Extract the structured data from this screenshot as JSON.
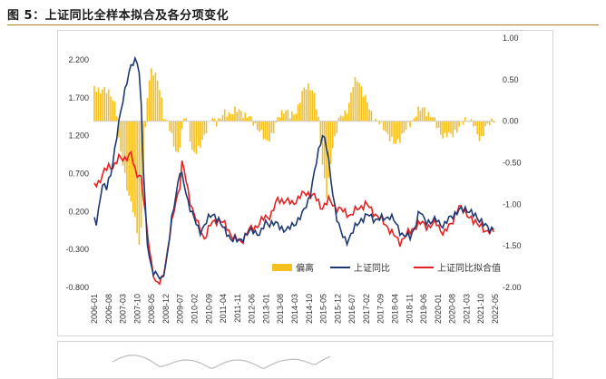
{
  "figure": {
    "title": "图 5：上证同比全样本拟合及各分项变化"
  },
  "chart_data": {
    "type": "line",
    "title": "",
    "left_axis": {
      "ticks": [
        "2.200",
        "1.700",
        "1.200",
        "0.700",
        "0.200",
        "-0.300",
        "-0.800"
      ],
      "ylim": [
        -0.8,
        2.2
      ]
    },
    "right_axis": {
      "ticks": [
        "1.00",
        "0.50",
        "0.00",
        "-0.50",
        "-1.00",
        "-1.50",
        "-2.00"
      ],
      "ylim": [
        -2.0,
        1.0
      ]
    },
    "x_ticks": [
      "2006-01",
      "2006-08",
      "2007-03",
      "2007-10",
      "2008-05",
      "2008-12",
      "2009-07",
      "2010-02",
      "2010-09",
      "2011-04",
      "2011-11",
      "2012-06",
      "2013-01",
      "2013-08",
      "2014-03",
      "2014-10",
      "2015-05",
      "2015-12",
      "2016-07",
      "2017-02",
      "2017-09",
      "2018-04",
      "2018-11",
      "2019-06",
      "2020-01",
      "2020-08",
      "2021-03",
      "2021-10",
      "2022-05"
    ],
    "legend": [
      "偏离",
      "上证同比",
      "上证同比拟合值"
    ],
    "colors": {
      "deviation": "#f5c01f",
      "actual": "#1f3a73",
      "fitted": "#e52222"
    },
    "deviation_control_points": [
      [
        2006.0,
        0.4
      ],
      [
        2006.3,
        0.38
      ],
      [
        2006.7,
        0.33
      ],
      [
        2006.9,
        0.15
      ],
      [
        2007.0,
        -0.25
      ],
      [
        2007.2,
        -0.55
      ],
      [
        2007.4,
        -0.9
      ],
      [
        2007.6,
        -1.1
      ],
      [
        2007.75,
        -1.3
      ],
      [
        2007.85,
        -1.5
      ],
      [
        2007.95,
        -1.2
      ],
      [
        2008.05,
        -0.3
      ],
      [
        2008.2,
        0.45
      ],
      [
        2008.35,
        0.65
      ],
      [
        2008.5,
        0.55
      ],
      [
        2008.7,
        0.35
      ],
      [
        2008.85,
        0.05
      ],
      [
        2009.0,
        0.0
      ],
      [
        2009.2,
        -0.25
      ],
      [
        2009.4,
        -0.4
      ],
      [
        2009.55,
        -0.2
      ],
      [
        2009.7,
        0.08
      ],
      [
        2009.85,
        -0.05
      ],
      [
        2010.0,
        -0.35
      ],
      [
        2010.2,
        -0.4
      ],
      [
        2010.5,
        -0.15
      ],
      [
        2010.8,
        0.03
      ],
      [
        2011.0,
        0.0
      ],
      [
        2011.3,
        0.08
      ],
      [
        2011.7,
        0.12
      ],
      [
        2012.0,
        0.12
      ],
      [
        2012.3,
        0.05
      ],
      [
        2012.7,
        -0.08
      ],
      [
        2013.0,
        -0.25
      ],
      [
        2013.3,
        -0.15
      ],
      [
        2013.6,
        0.1
      ],
      [
        2013.8,
        0.15
      ],
      [
        2014.0,
        0.05
      ],
      [
        2014.3,
        0.15
      ],
      [
        2014.6,
        0.4
      ],
      [
        2014.8,
        0.45
      ],
      [
        2015.0,
        0.3
      ],
      [
        2015.2,
        -0.05
      ],
      [
        2015.35,
        -0.55
      ],
      [
        2015.5,
        -0.9
      ],
      [
        2015.6,
        -0.7
      ],
      [
        2015.75,
        -0.3
      ],
      [
        2016.0,
        0.02
      ],
      [
        2016.3,
        0.1
      ],
      [
        2016.6,
        0.45
      ],
      [
        2016.8,
        0.5
      ],
      [
        2017.0,
        0.35
      ],
      [
        2017.3,
        0.1
      ],
      [
        2017.6,
        0.0
      ],
      [
        2018.0,
        -0.15
      ],
      [
        2018.3,
        -0.3
      ],
      [
        2018.6,
        -0.15
      ],
      [
        2018.9,
        -0.05
      ],
      [
        2019.2,
        0.12
      ],
      [
        2019.5,
        0.15
      ],
      [
        2019.8,
        0.05
      ],
      [
        2020.0,
        -0.05
      ],
      [
        2020.3,
        -0.2
      ],
      [
        2020.6,
        -0.15
      ],
      [
        2020.9,
        -0.1
      ],
      [
        2021.2,
        0.05
      ],
      [
        2021.5,
        -0.05
      ],
      [
        2021.8,
        -0.22
      ],
      [
        2022.0,
        -0.1
      ],
      [
        2022.2,
        0.0
      ],
      [
        2022.4,
        0.05
      ]
    ],
    "actual_control_points": [
      [
        2006.0,
        0.1
      ],
      [
        2006.1,
        0.05
      ],
      [
        2006.3,
        0.55
      ],
      [
        2006.5,
        0.5
      ],
      [
        2006.7,
        0.75
      ],
      [
        2006.9,
        1.15
      ],
      [
        2007.1,
        1.55
      ],
      [
        2007.3,
        1.9
      ],
      [
        2007.5,
        2.1
      ],
      [
        2007.7,
        2.2
      ],
      [
        2007.8,
        2.2
      ],
      [
        2007.9,
        1.75
      ],
      [
        2008.0,
        0.8
      ],
      [
        2008.15,
        -0.2
      ],
      [
        2008.35,
        -0.55
      ],
      [
        2008.55,
        -0.65
      ],
      [
        2008.75,
        -0.7
      ],
      [
        2008.95,
        -0.45
      ],
      [
        2009.15,
        0.05
      ],
      [
        2009.35,
        0.45
      ],
      [
        2009.5,
        0.75
      ],
      [
        2009.6,
        0.65
      ],
      [
        2009.8,
        0.35
      ],
      [
        2010.0,
        0.2
      ],
      [
        2010.3,
        -0.1
      ],
      [
        2010.6,
        0.1
      ],
      [
        2010.9,
        0.15
      ],
      [
        2011.1,
        0.1
      ],
      [
        2011.3,
        -0.05
      ],
      [
        2011.6,
        -0.15
      ],
      [
        2011.9,
        -0.2
      ],
      [
        2012.2,
        -0.1
      ],
      [
        2012.5,
        -0.05
      ],
      [
        2012.8,
        -0.1
      ],
      [
        2013.0,
        0.05
      ],
      [
        2013.3,
        0.05
      ],
      [
        2013.6,
        0.0
      ],
      [
        2013.9,
        -0.05
      ],
      [
        2014.2,
        0.05
      ],
      [
        2014.5,
        0.15
      ],
      [
        2014.8,
        0.4
      ],
      [
        2015.0,
        0.7
      ],
      [
        2015.2,
        1.05
      ],
      [
        2015.35,
        1.25
      ],
      [
        2015.5,
        1.05
      ],
      [
        2015.7,
        0.55
      ],
      [
        2015.9,
        0.15
      ],
      [
        2016.1,
        -0.1
      ],
      [
        2016.3,
        -0.2
      ],
      [
        2016.6,
        -0.05
      ],
      [
        2016.9,
        0.1
      ],
      [
        2017.2,
        0.15
      ],
      [
        2017.5,
        0.1
      ],
      [
        2017.8,
        0.1
      ],
      [
        2018.1,
        0.15
      ],
      [
        2018.3,
        0.05
      ],
      [
        2018.6,
        -0.1
      ],
      [
        2018.9,
        -0.15
      ],
      [
        2019.1,
        0.0
      ],
      [
        2019.3,
        0.2
      ],
      [
        2019.5,
        0.1
      ],
      [
        2019.8,
        0.05
      ],
      [
        2020.0,
        0.1
      ],
      [
        2020.3,
        0.0
      ],
      [
        2020.6,
        0.15
      ],
      [
        2020.9,
        0.2
      ],
      [
        2021.2,
        0.25
      ],
      [
        2021.5,
        0.15
      ],
      [
        2021.8,
        0.1
      ],
      [
        2022.0,
        0.0
      ],
      [
        2022.2,
        -0.05
      ],
      [
        2022.4,
        0.05
      ]
    ],
    "fitted_control_points": [
      [
        2006.0,
        0.55
      ],
      [
        2006.2,
        0.6
      ],
      [
        2006.4,
        0.72
      ],
      [
        2006.6,
        0.8
      ],
      [
        2006.8,
        0.8
      ],
      [
        2007.0,
        0.9
      ],
      [
        2007.2,
        0.9
      ],
      [
        2007.5,
        0.95
      ],
      [
        2007.7,
        0.7
      ],
      [
        2007.9,
        0.7
      ],
      [
        2008.1,
        0.1
      ],
      [
        2008.3,
        -0.4
      ],
      [
        2008.5,
        -0.75
      ],
      [
        2008.7,
        -0.75
      ],
      [
        2008.9,
        -0.5
      ],
      [
        2009.1,
        -0.1
      ],
      [
        2009.3,
        0.3
      ],
      [
        2009.5,
        0.55
      ],
      [
        2009.6,
        0.88
      ],
      [
        2009.75,
        0.6
      ],
      [
        2009.95,
        0.3
      ],
      [
        2010.2,
        0.05
      ],
      [
        2010.5,
        -0.15
      ],
      [
        2010.8,
        0.05
      ],
      [
        2011.1,
        0.1
      ],
      [
        2011.4,
        0.0
      ],
      [
        2011.7,
        -0.15
      ],
      [
        2012.0,
        -0.2
      ],
      [
        2012.3,
        -0.05
      ],
      [
        2012.6,
        0.0
      ],
      [
        2012.9,
        0.1
      ],
      [
        2013.2,
        0.15
      ],
      [
        2013.5,
        0.35
      ],
      [
        2013.8,
        0.35
      ],
      [
        2014.1,
        0.3
      ],
      [
        2014.4,
        0.4
      ],
      [
        2014.7,
        0.45
      ],
      [
        2015.0,
        0.4
      ],
      [
        2015.3,
        0.25
      ],
      [
        2015.6,
        0.35
      ],
      [
        2015.9,
        0.25
      ],
      [
        2016.2,
        0.2
      ],
      [
        2016.5,
        0.15
      ],
      [
        2016.8,
        0.25
      ],
      [
        2017.1,
        0.3
      ],
      [
        2017.4,
        0.2
      ],
      [
        2017.7,
        0.1
      ],
      [
        2018.0,
        0.0
      ],
      [
        2018.2,
        -0.1
      ],
      [
        2018.5,
        -0.2
      ],
      [
        2018.8,
        -0.1
      ],
      [
        2019.1,
        0.0
      ],
      [
        2019.4,
        0.05
      ],
      [
        2019.7,
        0.0
      ],
      [
        2020.0,
        0.05
      ],
      [
        2020.3,
        -0.1
      ],
      [
        2020.6,
        0.05
      ],
      [
        2020.9,
        0.25
      ],
      [
        2021.2,
        0.2
      ],
      [
        2021.5,
        0.05
      ],
      [
        2021.8,
        0.05
      ],
      [
        2022.0,
        -0.1
      ],
      [
        2022.2,
        -0.05
      ],
      [
        2022.4,
        0.0
      ]
    ]
  }
}
